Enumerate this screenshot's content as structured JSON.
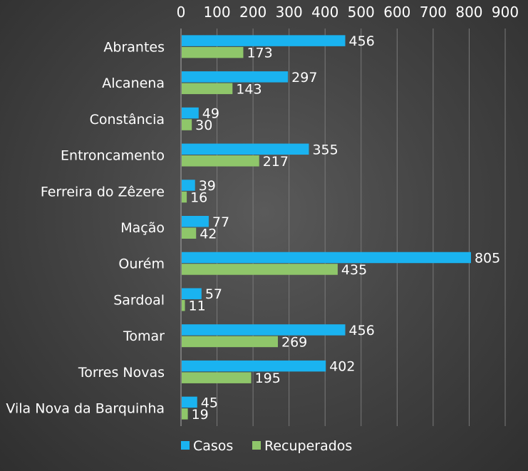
{
  "chart_data": {
    "type": "bar",
    "orientation": "horizontal",
    "categories": [
      "Abrantes",
      "Alcanena",
      "Constância",
      "Entroncamento",
      "Ferreira do Zêzere",
      "Mação",
      "Ourém",
      "Sardoal",
      "Tomar",
      "Torres Novas",
      "Vila Nova da Barquinha"
    ],
    "series": [
      {
        "name": "Casos",
        "color": "#1ab3f0",
        "values": [
          456,
          297,
          49,
          355,
          39,
          77,
          805,
          57,
          456,
          402,
          45
        ]
      },
      {
        "name": "Recuperados",
        "color": "#8fc66a",
        "values": [
          173,
          143,
          30,
          217,
          16,
          42,
          435,
          11,
          269,
          195,
          19
        ]
      }
    ],
    "xlim": [
      0,
      900
    ],
    "xticks": [
      0,
      100,
      200,
      300,
      400,
      500,
      600,
      700,
      800,
      900
    ],
    "x_axis_position": "top",
    "grid": true,
    "legend_position": "bottom"
  }
}
